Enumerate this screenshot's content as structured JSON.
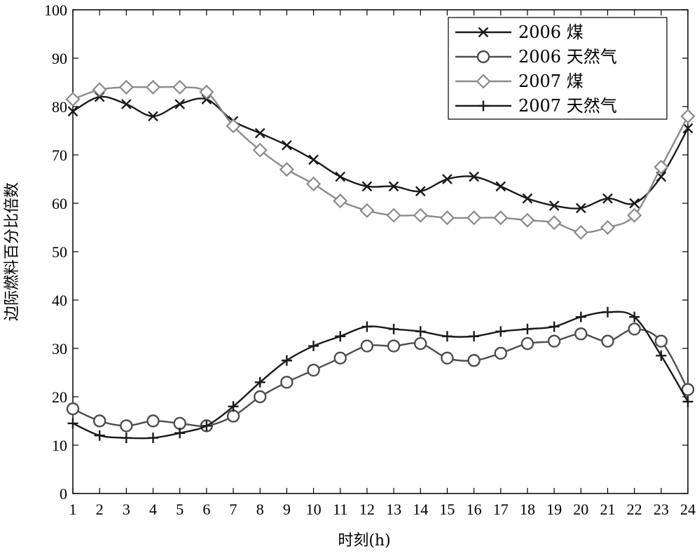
{
  "chart_data": {
    "type": "line",
    "title": "",
    "xlabel": "时刻(h)",
    "ylabel": "边际燃料百分比倍数",
    "x": [
      1,
      2,
      3,
      4,
      5,
      6,
      7,
      8,
      9,
      10,
      11,
      12,
      13,
      14,
      15,
      16,
      17,
      18,
      19,
      20,
      21,
      22,
      23,
      24
    ],
    "xlim": [
      1,
      24
    ],
    "ylim": [
      0,
      100
    ],
    "yticks": [
      0,
      10,
      20,
      30,
      40,
      50,
      60,
      70,
      80,
      90,
      100
    ],
    "grid": false,
    "legend_position": "top-right",
    "series": [
      {
        "name": "2006 煤",
        "marker": "x",
        "color": "#1a1a1a",
        "values": [
          79,
          82,
          80.5,
          78,
          80.5,
          81.5,
          77,
          74.5,
          72,
          69,
          65.5,
          63.5,
          63.5,
          62.5,
          65,
          65.5,
          63.5,
          61,
          59.5,
          59,
          61,
          60,
          65.5,
          75.5
        ]
      },
      {
        "name": "2006 天然气",
        "marker": "circle",
        "color": "#4d4d4d",
        "values": [
          17.5,
          15,
          14,
          15,
          14.5,
          14,
          16,
          20,
          23,
          25.5,
          28,
          30.5,
          30.5,
          31,
          28,
          27.5,
          29,
          31,
          31.5,
          33,
          31.5,
          34,
          31.5,
          21.5
        ]
      },
      {
        "name": "2007 煤",
        "marker": "diamond",
        "color": "#8a8a8a",
        "values": [
          81.5,
          83.5,
          84,
          84,
          84,
          83,
          76,
          71,
          67,
          64,
          60.5,
          58.5,
          57.5,
          57.5,
          57,
          57,
          57,
          56.5,
          56,
          54,
          55,
          57.5,
          67.5,
          78
        ]
      },
      {
        "name": "2007 天然气",
        "marker": "plus",
        "color": "#1a1a1a",
        "values": [
          14.5,
          12,
          11.5,
          11.5,
          12.5,
          14,
          18,
          23,
          27.5,
          30.5,
          32.5,
          34.5,
          34,
          33.5,
          32.5,
          32.5,
          33.5,
          34,
          34.5,
          36.5,
          37.5,
          36.5,
          28.5,
          19
        ]
      }
    ]
  }
}
